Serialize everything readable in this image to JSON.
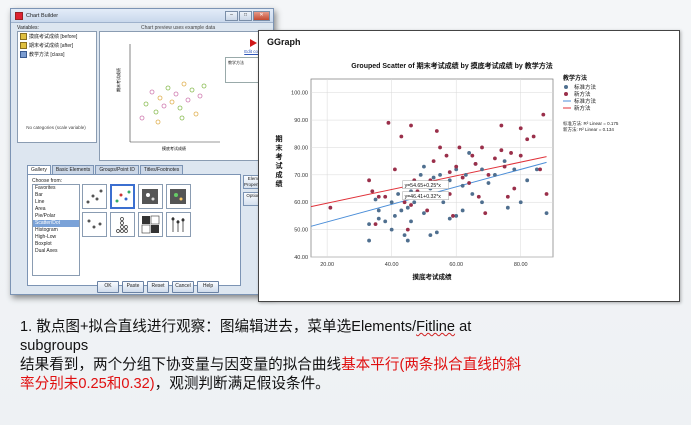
{
  "chart_builder": {
    "title": "Chart Builder",
    "variables_label": "Variables:",
    "preview_label": "Chart preview uses example data",
    "variables": [
      {
        "label": "摸底考试成绩 [before]"
      },
      {
        "label": "期末考试成绩 [after]"
      },
      {
        "label": "教学方法 [class]"
      }
    ],
    "no_categories_note": "No categories (scale variable)",
    "edit_properties_link": "Edit color",
    "legend_title": "教学方法",
    "preview_y_label": "期末考试成绩",
    "preview_x_label": "摸底考试成绩",
    "tabs": [
      "Gallery",
      "Basic Elements",
      "Groups/Point ID",
      "Titles/Footnotes"
    ],
    "active_tab": "Gallery",
    "choose_from_label": "Choose from:",
    "choose_from": [
      "Favorites",
      "Bar",
      "Line",
      "Area",
      "Pie/Polar",
      "Scatter/Dot",
      "Histogram",
      "High-Low",
      "Boxplot",
      "Dual Axes"
    ],
    "selected_choice": "Scatter/Dot",
    "side_buttons": [
      "Element Properties...",
      "Options..."
    ],
    "bottom_buttons": [
      "OK",
      "Paste",
      "Reset",
      "Cancel",
      "Help"
    ]
  },
  "ggraph": {
    "panel_title": "GGraph"
  },
  "chart_data": {
    "type": "scatter",
    "title": "Grouped Scatter of 期末考试成绩 by 摸底考试成绩 by 教学方法",
    "xlabel": "摸底考试成绩",
    "ylabel": "期末考试成绩",
    "xlim": [
      15,
      90
    ],
    "ylim": [
      40,
      105
    ],
    "xticks": [
      "20.00",
      "40.00",
      "60.00",
      "80.00"
    ],
    "yticks": [
      "40.00",
      "50.00",
      "60.00",
      "70.00",
      "80.00",
      "90.00",
      "100.00"
    ],
    "grid": true,
    "legend_title": "教学方法",
    "legend_position": "top-right",
    "legend_items": [
      "标准方法",
      "新方法",
      "标准方法",
      "新方法"
    ],
    "r2_notes": [
      "标准方法: R² Linear = 0.175",
      "新方法: R² Linear = 0.134"
    ],
    "colors": {
      "standard": "#4f6f8f",
      "new": "#9a2f4a",
      "standard_line": "#4b8ed8",
      "new_line": "#e0323a"
    },
    "series": [
      {
        "name": "标准方法",
        "points": [
          [
            33,
            52
          ],
          [
            33,
            46
          ],
          [
            35,
            61
          ],
          [
            36,
            57
          ],
          [
            38,
            53
          ],
          [
            40,
            50
          ],
          [
            40,
            60
          ],
          [
            41,
            55
          ],
          [
            42,
            63
          ],
          [
            43,
            57
          ],
          [
            44,
            48
          ],
          [
            45,
            58
          ],
          [
            45,
            46
          ],
          [
            46,
            64
          ],
          [
            46,
            53
          ],
          [
            47,
            60
          ],
          [
            48,
            67
          ],
          [
            49,
            70
          ],
          [
            50,
            56
          ],
          [
            50,
            62
          ],
          [
            50,
            73
          ],
          [
            52,
            48
          ],
          [
            52,
            65
          ],
          [
            53,
            69
          ],
          [
            55,
            62
          ],
          [
            55,
            70
          ],
          [
            56,
            60
          ],
          [
            57,
            66
          ],
          [
            58,
            54
          ],
          [
            58,
            68
          ],
          [
            60,
            55
          ],
          [
            60,
            72
          ],
          [
            62,
            57
          ],
          [
            62,
            66
          ],
          [
            63,
            70
          ],
          [
            64,
            78
          ],
          [
            65,
            63
          ],
          [
            66,
            74
          ],
          [
            68,
            60
          ],
          [
            68,
            72
          ],
          [
            70,
            67
          ],
          [
            72,
            70
          ],
          [
            75,
            75
          ],
          [
            76,
            58
          ],
          [
            78,
            72
          ],
          [
            80,
            60
          ],
          [
            82,
            68
          ],
          [
            85,
            72
          ],
          [
            88,
            56
          ],
          [
            36,
            54
          ],
          [
            54,
            49
          ],
          [
            44,
            62
          ]
        ]
      },
      {
        "name": "新方法",
        "points": [
          [
            21,
            58
          ],
          [
            33,
            68
          ],
          [
            34,
            64
          ],
          [
            35,
            52
          ],
          [
            36,
            62
          ],
          [
            38,
            62
          ],
          [
            39,
            89
          ],
          [
            43,
            84
          ],
          [
            44,
            60
          ],
          [
            45,
            50
          ],
          [
            46,
            59
          ],
          [
            47,
            68
          ],
          [
            48,
            64
          ],
          [
            50,
            66
          ],
          [
            52,
            68
          ],
          [
            53,
            75
          ],
          [
            54,
            86
          ],
          [
            55,
            80
          ],
          [
            57,
            77
          ],
          [
            58,
            63
          ],
          [
            58,
            71
          ],
          [
            59,
            55
          ],
          [
            60,
            73
          ],
          [
            61,
            80
          ],
          [
            62,
            69
          ],
          [
            64,
            67
          ],
          [
            65,
            77
          ],
          [
            66,
            74
          ],
          [
            67,
            62
          ],
          [
            68,
            80
          ],
          [
            70,
            70
          ],
          [
            72,
            76
          ],
          [
            74,
            79
          ],
          [
            75,
            73
          ],
          [
            77,
            78
          ],
          [
            78,
            65
          ],
          [
            80,
            87
          ],
          [
            80,
            77
          ],
          [
            82,
            83
          ],
          [
            84,
            84
          ],
          [
            86,
            72
          ],
          [
            87,
            92
          ],
          [
            88,
            63
          ],
          [
            41,
            72
          ],
          [
            46,
            88
          ],
          [
            74,
            88
          ],
          [
            76,
            62
          ],
          [
            69,
            56
          ],
          [
            51,
            57
          ]
        ]
      }
    ],
    "fit_lines": [
      {
        "name": "标准方法",
        "label": "y=46.41+0.32*x",
        "intercept": 46.41,
        "slope": 0.32
      },
      {
        "name": "新方法",
        "label": "y=54.65+0.25*x",
        "intercept": 54.65,
        "slope": 0.25
      }
    ]
  },
  "caption": {
    "line1": "1. 散点图+拟合直线进行观察：图编辑进去，菜单选Elements/",
    "line1_squig": "Fitline",
    "line1_end": " at",
    "line2": "subgroups",
    "line3_a": "结果看到，两个分组下协变量与因变量的拟合曲线",
    "line3_red": "基本平行(两条拟合直线的斜",
    "line4_red": "率分别未0.25和0.32)",
    "line4_b": "，观测判断满足假设条件。"
  }
}
